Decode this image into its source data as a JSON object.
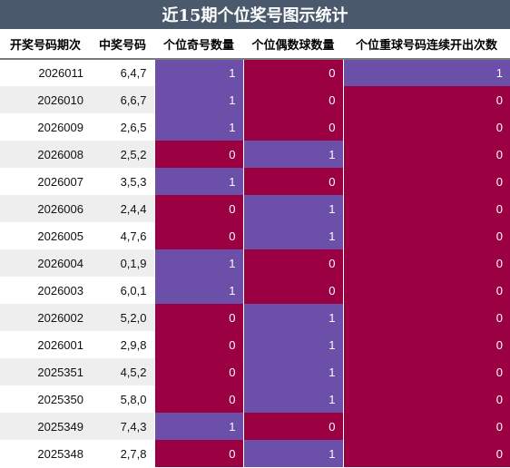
{
  "title": "近15期个位奖号图示统计",
  "headers": [
    "开奖号码期次",
    "中奖号码",
    "个位奇号数量",
    "个位偶数球数量",
    "个位重球号码连续开出次数"
  ],
  "colors": {
    "one": "#6b4fa8",
    "zero": "#9a0042",
    "header_bar": "#4a5a6c"
  },
  "rows": [
    {
      "issue": "2026011",
      "numbers": "6,4,7",
      "odd": "1",
      "even": "0",
      "repeat": "1"
    },
    {
      "issue": "2026010",
      "numbers": "6,6,7",
      "odd": "1",
      "even": "0",
      "repeat": "0"
    },
    {
      "issue": "2026009",
      "numbers": "2,6,5",
      "odd": "1",
      "even": "0",
      "repeat": "0"
    },
    {
      "issue": "2026008",
      "numbers": "2,5,2",
      "odd": "0",
      "even": "1",
      "repeat": "0"
    },
    {
      "issue": "2026007",
      "numbers": "3,5,3",
      "odd": "1",
      "even": "0",
      "repeat": "0"
    },
    {
      "issue": "2026006",
      "numbers": "2,4,4",
      "odd": "0",
      "even": "1",
      "repeat": "0"
    },
    {
      "issue": "2026005",
      "numbers": "4,7,6",
      "odd": "0",
      "even": "1",
      "repeat": "0"
    },
    {
      "issue": "2026004",
      "numbers": "0,1,9",
      "odd": "1",
      "even": "0",
      "repeat": "0"
    },
    {
      "issue": "2026003",
      "numbers": "6,0,1",
      "odd": "1",
      "even": "0",
      "repeat": "0"
    },
    {
      "issue": "2026002",
      "numbers": "5,2,0",
      "odd": "0",
      "even": "1",
      "repeat": "0"
    },
    {
      "issue": "2026001",
      "numbers": "2,9,8",
      "odd": "0",
      "even": "1",
      "repeat": "0"
    },
    {
      "issue": "2025351",
      "numbers": "4,5,2",
      "odd": "0",
      "even": "1",
      "repeat": "0"
    },
    {
      "issue": "2025350",
      "numbers": "5,8,0",
      "odd": "0",
      "even": "1",
      "repeat": "0"
    },
    {
      "issue": "2025349",
      "numbers": "7,4,3",
      "odd": "1",
      "even": "0",
      "repeat": "0"
    },
    {
      "issue": "2025348",
      "numbers": "2,7,8",
      "odd": "0",
      "even": "1",
      "repeat": "0"
    }
  ]
}
